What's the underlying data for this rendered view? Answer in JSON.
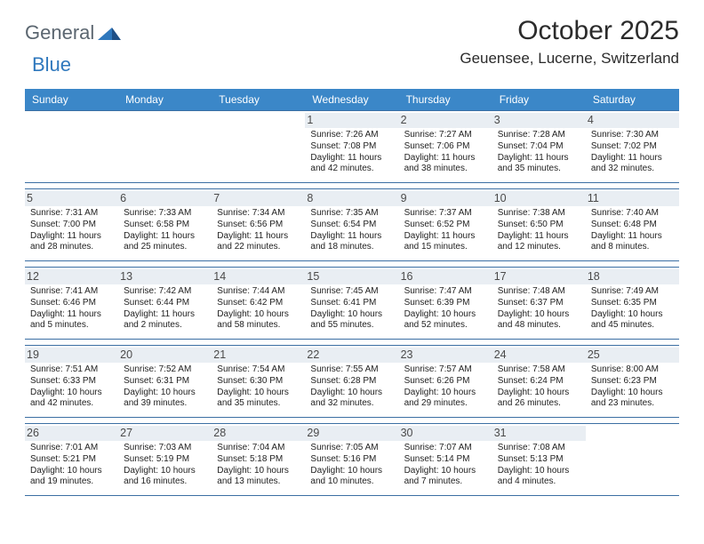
{
  "brand": {
    "part1": "General",
    "part2": "Blue"
  },
  "title": "October 2025",
  "location": "Geuensee, Lucerne, Switzerland",
  "colors": {
    "header_bg": "#3b87c8",
    "header_text": "#ffffff",
    "rule": "#3b6fa3",
    "daynum_bg": "#e9eef3",
    "brand_gray": "#5b6670",
    "brand_blue": "#2f78bd"
  },
  "dow": [
    "Sunday",
    "Monday",
    "Tuesday",
    "Wednesday",
    "Thursday",
    "Friday",
    "Saturday"
  ],
  "weeks": [
    [
      {
        "n": "",
        "sr": "",
        "ss": "",
        "dl": ""
      },
      {
        "n": "",
        "sr": "",
        "ss": "",
        "dl": ""
      },
      {
        "n": "",
        "sr": "",
        "ss": "",
        "dl": ""
      },
      {
        "n": "1",
        "sr": "7:26 AM",
        "ss": "7:08 PM",
        "dl": "11 hours and 42 minutes."
      },
      {
        "n": "2",
        "sr": "7:27 AM",
        "ss": "7:06 PM",
        "dl": "11 hours and 38 minutes."
      },
      {
        "n": "3",
        "sr": "7:28 AM",
        "ss": "7:04 PM",
        "dl": "11 hours and 35 minutes."
      },
      {
        "n": "4",
        "sr": "7:30 AM",
        "ss": "7:02 PM",
        "dl": "11 hours and 32 minutes."
      }
    ],
    [
      {
        "n": "5",
        "sr": "7:31 AM",
        "ss": "7:00 PM",
        "dl": "11 hours and 28 minutes."
      },
      {
        "n": "6",
        "sr": "7:33 AM",
        "ss": "6:58 PM",
        "dl": "11 hours and 25 minutes."
      },
      {
        "n": "7",
        "sr": "7:34 AM",
        "ss": "6:56 PM",
        "dl": "11 hours and 22 minutes."
      },
      {
        "n": "8",
        "sr": "7:35 AM",
        "ss": "6:54 PM",
        "dl": "11 hours and 18 minutes."
      },
      {
        "n": "9",
        "sr": "7:37 AM",
        "ss": "6:52 PM",
        "dl": "11 hours and 15 minutes."
      },
      {
        "n": "10",
        "sr": "7:38 AM",
        "ss": "6:50 PM",
        "dl": "11 hours and 12 minutes."
      },
      {
        "n": "11",
        "sr": "7:40 AM",
        "ss": "6:48 PM",
        "dl": "11 hours and 8 minutes."
      }
    ],
    [
      {
        "n": "12",
        "sr": "7:41 AM",
        "ss": "6:46 PM",
        "dl": "11 hours and 5 minutes."
      },
      {
        "n": "13",
        "sr": "7:42 AM",
        "ss": "6:44 PM",
        "dl": "11 hours and 2 minutes."
      },
      {
        "n": "14",
        "sr": "7:44 AM",
        "ss": "6:42 PM",
        "dl": "10 hours and 58 minutes."
      },
      {
        "n": "15",
        "sr": "7:45 AM",
        "ss": "6:41 PM",
        "dl": "10 hours and 55 minutes."
      },
      {
        "n": "16",
        "sr": "7:47 AM",
        "ss": "6:39 PM",
        "dl": "10 hours and 52 minutes."
      },
      {
        "n": "17",
        "sr": "7:48 AM",
        "ss": "6:37 PM",
        "dl": "10 hours and 48 minutes."
      },
      {
        "n": "18",
        "sr": "7:49 AM",
        "ss": "6:35 PM",
        "dl": "10 hours and 45 minutes."
      }
    ],
    [
      {
        "n": "19",
        "sr": "7:51 AM",
        "ss": "6:33 PM",
        "dl": "10 hours and 42 minutes."
      },
      {
        "n": "20",
        "sr": "7:52 AM",
        "ss": "6:31 PM",
        "dl": "10 hours and 39 minutes."
      },
      {
        "n": "21",
        "sr": "7:54 AM",
        "ss": "6:30 PM",
        "dl": "10 hours and 35 minutes."
      },
      {
        "n": "22",
        "sr": "7:55 AM",
        "ss": "6:28 PM",
        "dl": "10 hours and 32 minutes."
      },
      {
        "n": "23",
        "sr": "7:57 AM",
        "ss": "6:26 PM",
        "dl": "10 hours and 29 minutes."
      },
      {
        "n": "24",
        "sr": "7:58 AM",
        "ss": "6:24 PM",
        "dl": "10 hours and 26 minutes."
      },
      {
        "n": "25",
        "sr": "8:00 AM",
        "ss": "6:23 PM",
        "dl": "10 hours and 23 minutes."
      }
    ],
    [
      {
        "n": "26",
        "sr": "7:01 AM",
        "ss": "5:21 PM",
        "dl": "10 hours and 19 minutes."
      },
      {
        "n": "27",
        "sr": "7:03 AM",
        "ss": "5:19 PM",
        "dl": "10 hours and 16 minutes."
      },
      {
        "n": "28",
        "sr": "7:04 AM",
        "ss": "5:18 PM",
        "dl": "10 hours and 13 minutes."
      },
      {
        "n": "29",
        "sr": "7:05 AM",
        "ss": "5:16 PM",
        "dl": "10 hours and 10 minutes."
      },
      {
        "n": "30",
        "sr": "7:07 AM",
        "ss": "5:14 PM",
        "dl": "10 hours and 7 minutes."
      },
      {
        "n": "31",
        "sr": "7:08 AM",
        "ss": "5:13 PM",
        "dl": "10 hours and 4 minutes."
      },
      {
        "n": "",
        "sr": "",
        "ss": "",
        "dl": ""
      }
    ]
  ],
  "labels": {
    "sunrise": "Sunrise:",
    "sunset": "Sunset:",
    "daylight": "Daylight:"
  }
}
